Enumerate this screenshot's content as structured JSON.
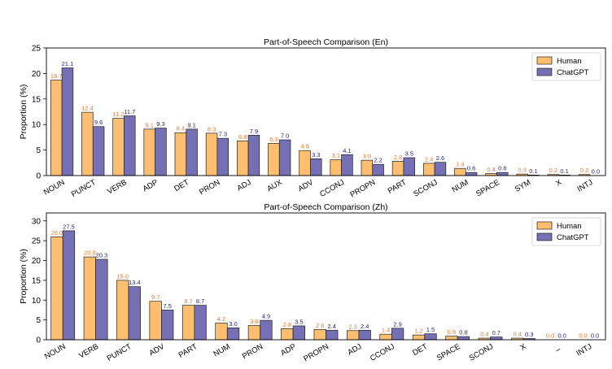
{
  "colors": {
    "human": "#FDBF6F",
    "chatgpt": "#7570B3",
    "human_label": "#E8762B",
    "chatgpt_label": "#1F1F7A",
    "axis": "#000000"
  },
  "chart_data": [
    {
      "type": "bar",
      "title": "Part-of-Speech Comparison (En)",
      "xlabel": "",
      "ylabel": "Proportion (%)",
      "ylim": [
        0,
        25
      ],
      "yticks": [
        0,
        5,
        10,
        15,
        20,
        25
      ],
      "legend_position": "top-right",
      "categories": [
        "NOUN",
        "PUNCT",
        "VERB",
        "ADP",
        "DET",
        "PRON",
        "ADJ",
        "AUX",
        "ADV",
        "CCONJ",
        "PROPN",
        "PART",
        "SCONJ",
        "NUM",
        "SPACE",
        "SYM",
        "X",
        "INTJ"
      ],
      "series": [
        {
          "name": "Human",
          "values": [
            18.7,
            12.4,
            11.2,
            9.1,
            8.4,
            8.3,
            6.8,
            6.3,
            4.9,
            3.1,
            3.0,
            2.8,
            2.4,
            1.4,
            0.4,
            0.3,
            0.2,
            0.2
          ]
        },
        {
          "name": "ChatGPT",
          "values": [
            21.1,
            9.6,
            11.7,
            9.3,
            9.1,
            7.3,
            7.9,
            7.0,
            3.3,
            4.1,
            2.2,
            3.5,
            2.6,
            0.6,
            0.6,
            0.1,
            0.1,
            0.0
          ]
        }
      ]
    },
    {
      "type": "bar",
      "title": "Part-of-Speech Comparison (Zh)",
      "xlabel": "",
      "ylabel": "Proportion (%)",
      "ylim": [
        0,
        32
      ],
      "yticks": [
        0,
        5,
        10,
        15,
        20,
        25,
        30
      ],
      "legend_position": "top-right",
      "categories": [
        "NOUN",
        "VERB",
        "PUNCT",
        "ADV",
        "PART",
        "NUM",
        "PRON",
        "ADP",
        "PROPN",
        "ADJ",
        "CCONJ",
        "DET",
        "SPACE",
        "SCONJ",
        "X",
        "_",
        "INTJ"
      ],
      "series": [
        {
          "name": "Human",
          "values": [
            26.0,
            20.9,
            15.0,
            9.7,
            8.7,
            4.2,
            3.6,
            2.8,
            2.6,
            2.3,
            1.4,
            1.2,
            0.9,
            0.4,
            0.4,
            0.0,
            0.0
          ]
        },
        {
          "name": "ChatGPT",
          "values": [
            27.5,
            20.3,
            13.4,
            7.5,
            8.7,
            3.0,
            4.9,
            3.5,
            2.4,
            2.4,
            2.9,
            1.5,
            0.8,
            0.7,
            0.3,
            0.0,
            0.0
          ]
        }
      ]
    }
  ]
}
